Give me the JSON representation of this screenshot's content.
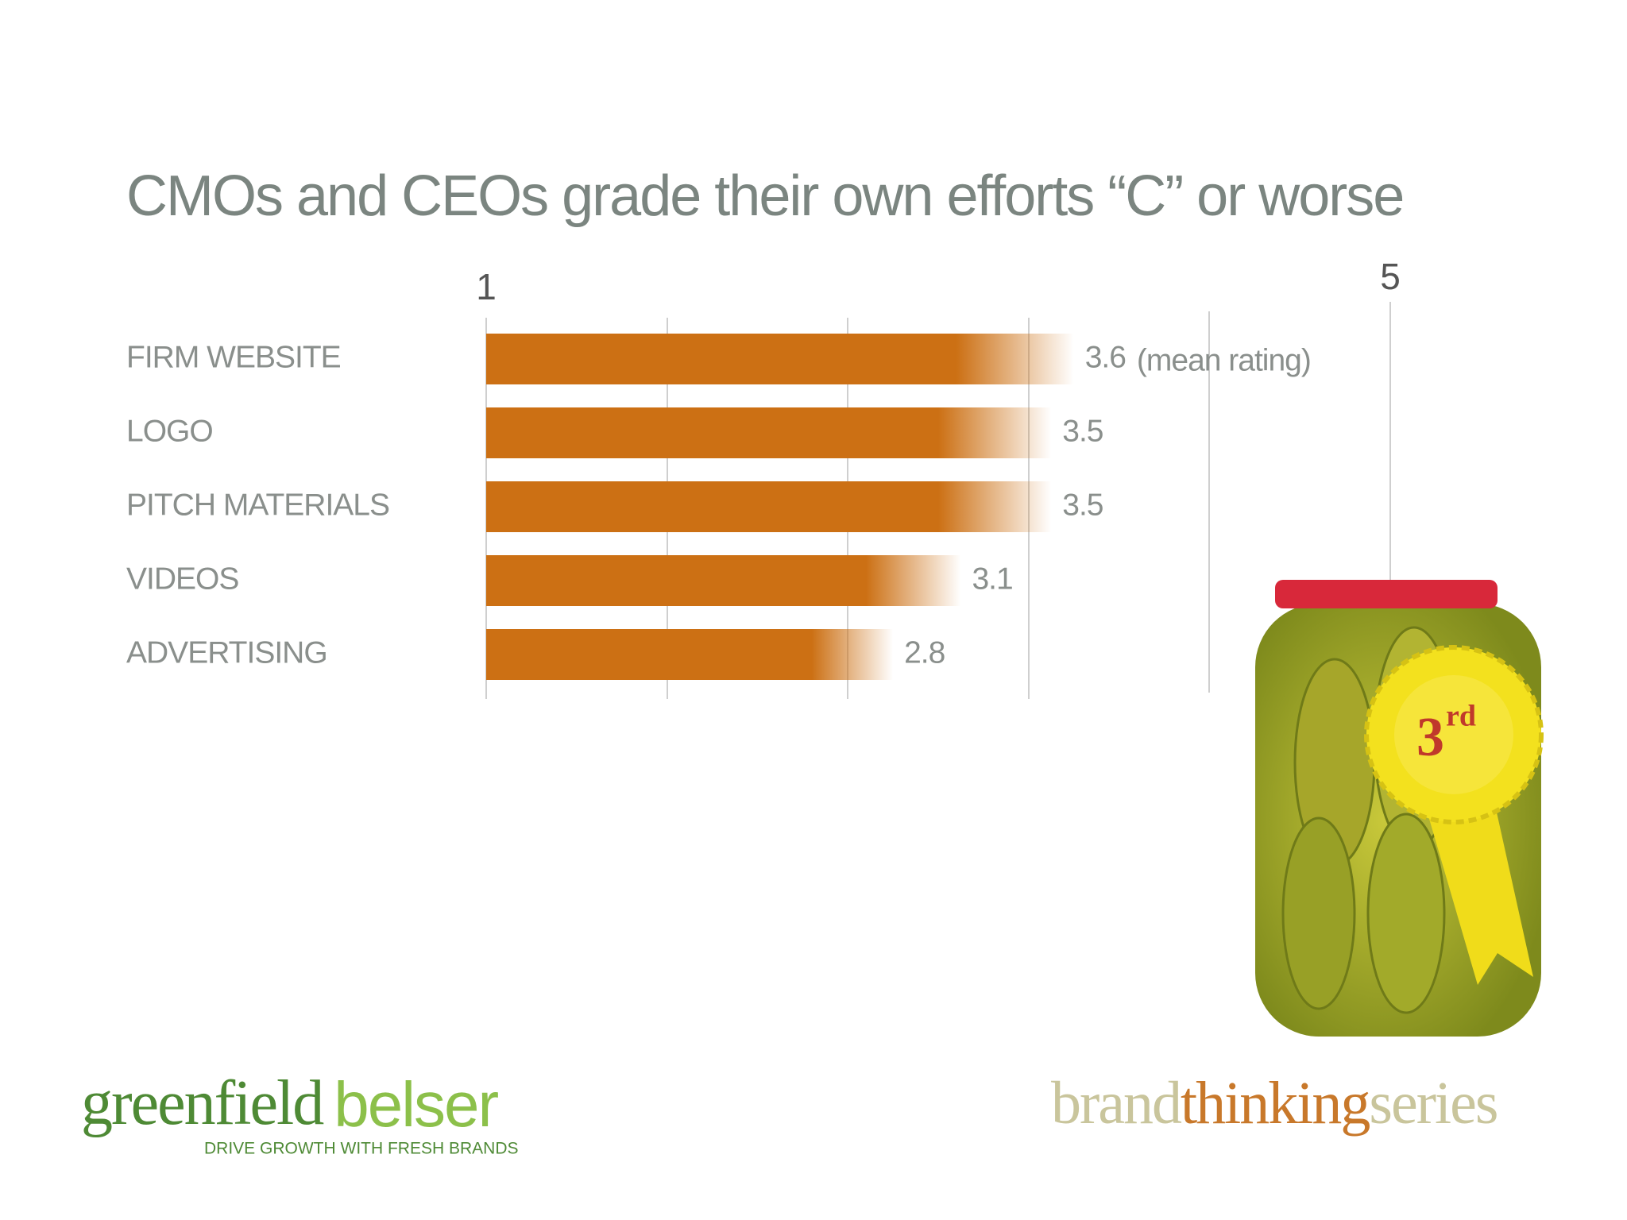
{
  "chart_data": {
    "type": "bar",
    "orientation": "horizontal",
    "title": "CMOs and CEOs grade their own efforts “C” or worse",
    "categories": [
      "FIRM WEBSITE",
      "LOGO",
      "PITCH MATERIALS",
      "VIDEOS",
      "ADVERTISING"
    ],
    "values": [
      3.6,
      3.5,
      3.5,
      3.1,
      2.8
    ],
    "value_note": "(mean rating)",
    "color": "#cc7014",
    "xlim": [
      1,
      5
    ],
    "xticks": [
      1,
      5
    ],
    "grid": true
  },
  "badge": {
    "number": "3",
    "suffix": "rd"
  },
  "footer": {
    "logo_main": "greenfield",
    "logo_accent": "belser",
    "tagline": "DRIVE GROWTH WITH FRESH BRANDS",
    "series_a": "brand",
    "series_b": "thinking",
    "series_c": "series"
  }
}
